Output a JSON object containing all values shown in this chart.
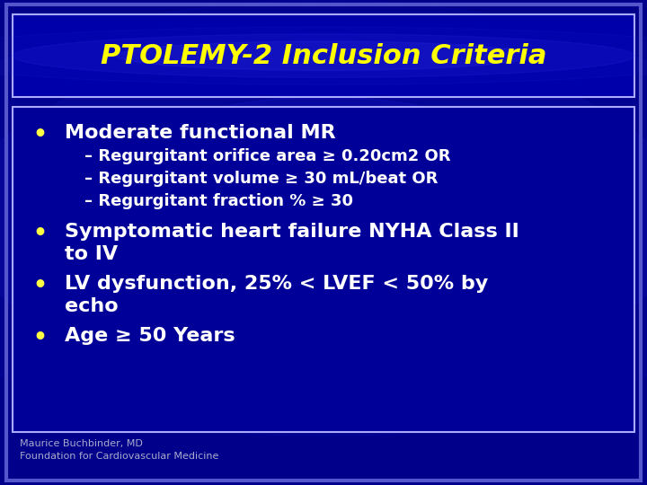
{
  "title": "PTOLEMY-2 Inclusion Criteria",
  "title_color": "#FFFF00",
  "title_fontsize": 22,
  "outer_bg": "#000060",
  "title_box_facecolor": "#0000AA",
  "content_box_facecolor": "#000099",
  "border_color": "#AAAAFF",
  "outer_border_color": "#5555CC",
  "bullet_color": "#FFFF44",
  "text_color": "#FFFFFF",
  "sub_text_color": "#FFFFFF",
  "footer_color": "#AAAACC",
  "bullet1": "Moderate functional MR",
  "bullet2_line1": "Symptomatic heart failure NYHA Class II",
  "bullet2_line2": "to IV",
  "bullet3_line1": "LV dysfunction, 25% < LVEF < 50% by",
  "bullet3_line2": "echo",
  "bullet4": "Age ≥ 50 Years",
  "sub_bullets": [
    "– Regurgitant orifice area ≥ 0.20cm2 OR",
    "– Regurgitant volume ≥ 30 mL/beat OR",
    "– Regurgitant fraction % ≥ 30"
  ],
  "footer_line1": "Maurice Buchbinder, MD",
  "footer_line2": "Foundation for Cardiovascular Medicine",
  "bullet_fontsize": 16,
  "sub_bullet_fontsize": 13,
  "footer_fontsize": 8
}
